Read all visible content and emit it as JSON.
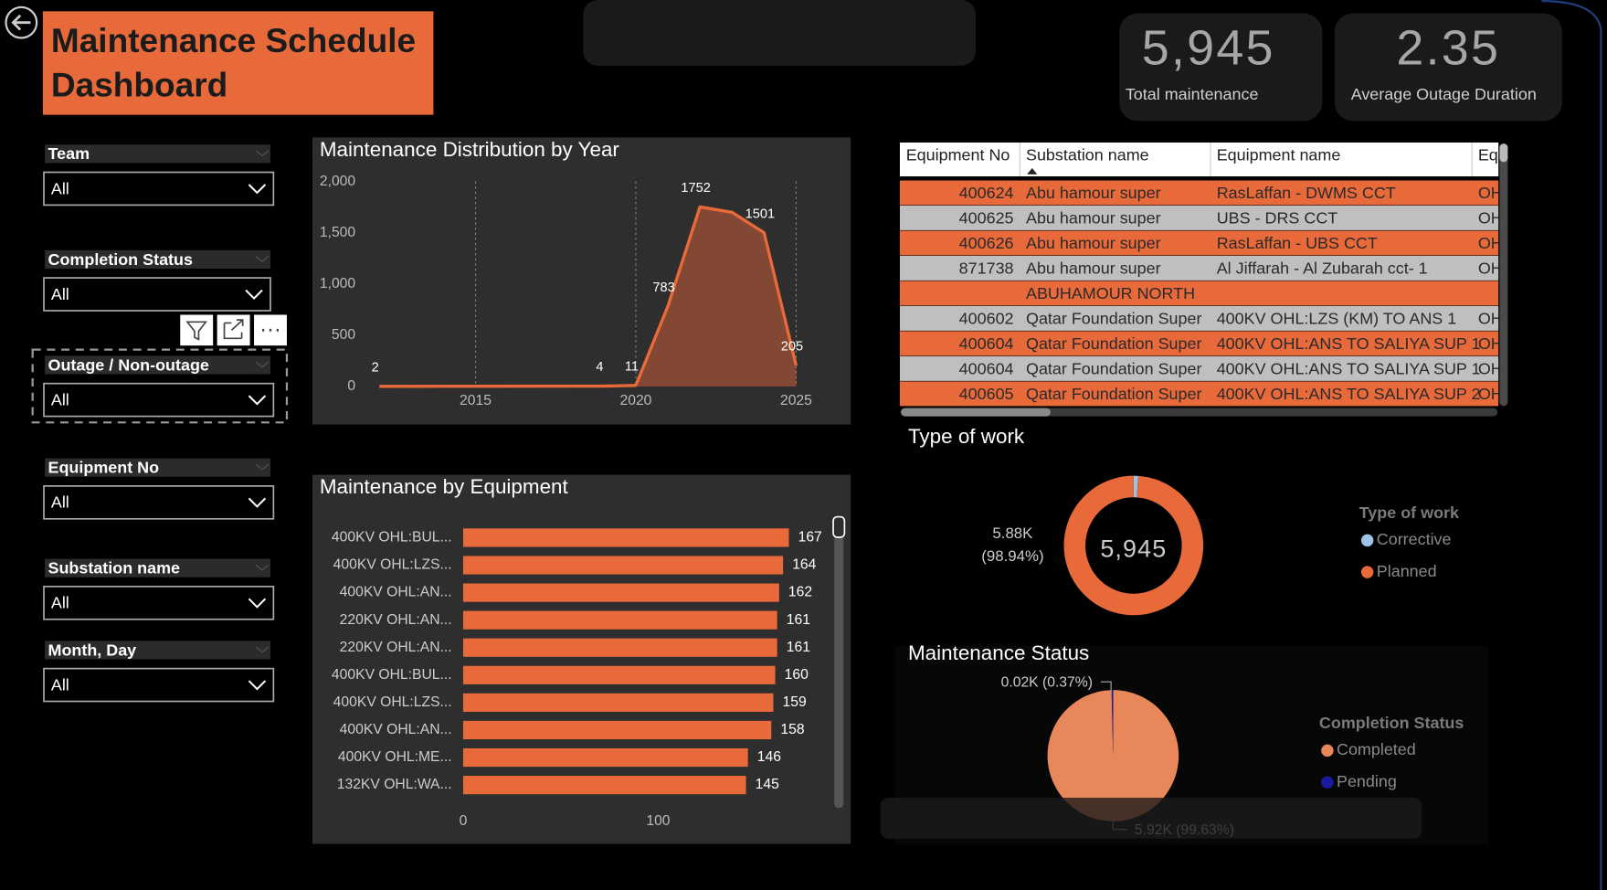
{
  "header": {
    "title": "Maintenance Schedule Dashboard"
  },
  "kpis": [
    {
      "value": "5,945",
      "label": "Total maintenance"
    },
    {
      "value": "2.35",
      "label": "Average Outage Duration"
    }
  ],
  "slicers": [
    {
      "label": "Team",
      "value": "All"
    },
    {
      "label": "Completion Status",
      "value": "All"
    },
    {
      "label": "Outage / Non-outage",
      "value": "All"
    },
    {
      "label": "Equipment No",
      "value": "All"
    },
    {
      "label": "Substation name",
      "value": "All"
    },
    {
      "label": "Month, Day",
      "value": "All"
    }
  ],
  "table": {
    "columns": [
      "Equipment No",
      "Substation name",
      "Equipment name",
      "Eq"
    ],
    "row_colors": [
      "#e8693a",
      "#bfbfbf"
    ],
    "rows": [
      [
        400624,
        "Abu hamour super",
        "RasLaffan - DWMS CCT",
        "OH"
      ],
      [
        400625,
        "Abu hamour super",
        "UBS - DRS CCT",
        "OH"
      ],
      [
        400626,
        "Abu hamour super",
        "RasLaffan - UBS CCT",
        "OH"
      ],
      [
        871738,
        "Abu hamour super",
        "Al Jiffarah - Al Zubarah cct- 1",
        "OH"
      ],
      [
        null,
        "ABUHAMOUR NORTH",
        null,
        null
      ],
      [
        400602,
        "Qatar Foundation Super",
        "400KV OHL:LZS (KM) TO ANS 1",
        "OH"
      ],
      [
        400604,
        "Qatar Foundation Super",
        "400KV OHL:ANS TO SALIYA SUP 1",
        "OH"
      ],
      [
        400604,
        "Qatar Foundation Super",
        "400KV OHL:ANS TO SALIYA SUP 1",
        "OH"
      ],
      [
        400605,
        "Qatar Foundation Super",
        "400KV OHL:ANS TO SALIYA SUP 2",
        "OH"
      ]
    ]
  },
  "chart_data": [
    {
      "type": "line",
      "title": "Maintenance Distribution by Year",
      "color": "#e8693a",
      "area": true,
      "x": [
        2012,
        2019,
        2020,
        2021,
        2022,
        2023,
        2024,
        2025
      ],
      "values": [
        2,
        4,
        11,
        783,
        1752,
        1700,
        1501,
        205
      ],
      "value_labels": [
        "2",
        "4",
        "11",
        "783",
        "1752",
        null,
        "1501",
        "205"
      ],
      "xlim": [
        2011.8,
        2025.55
      ],
      "xticks": [
        2015,
        2020,
        2025
      ],
      "ylim": [
        0,
        2000
      ],
      "yticks": [
        0,
        500,
        {
          "value": 1000,
          "label": "1,000"
        },
        {
          "value": 1500,
          "label": "1,500"
        },
        {
          "value": 2000,
          "label": "2,000"
        }
      ],
      "grid": "x"
    },
    {
      "type": "bar",
      "orientation": "horizontal",
      "title": "Maintenance by Equipment",
      "color": "#e8693a",
      "categories": [
        "400KV OHL:BUL...",
        "400KV OHL:LZS...",
        "400KV OHL:AN...",
        "220KV OHL:AN...",
        "220KV OHL:AN...",
        "400KV OHL:BUL...",
        "400KV OHL:LZS...",
        "400KV OHL:AN...",
        "400KV OHL:ME...",
        "132KV OHL:WA..."
      ],
      "values": [
        167,
        164,
        162,
        161,
        161,
        160,
        159,
        158,
        146,
        145
      ],
      "xlim": [
        0,
        185
      ],
      "xticks": [
        0,
        100
      ]
    },
    {
      "type": "donut",
      "title": "Type of work",
      "legend_title": "Type of work",
      "center_label": "5,945",
      "categories": [
        "Corrective",
        "Planned"
      ],
      "values": [
        63,
        5882
      ],
      "value_labels": [
        null,
        "5.88K (98.94%)"
      ],
      "colors": [
        "#9dc3e6",
        "#e8693a"
      ]
    },
    {
      "type": "pie",
      "title": "Maintenance Status",
      "legend_title": "Completion Status",
      "categories": [
        "Completed",
        "Pending"
      ],
      "values": [
        5923,
        22
      ],
      "value_labels": [
        "5.92K (99.63%)",
        "0.02K (0.37%)"
      ],
      "colors": [
        "#e8875a",
        "#1a1aa0"
      ]
    }
  ]
}
